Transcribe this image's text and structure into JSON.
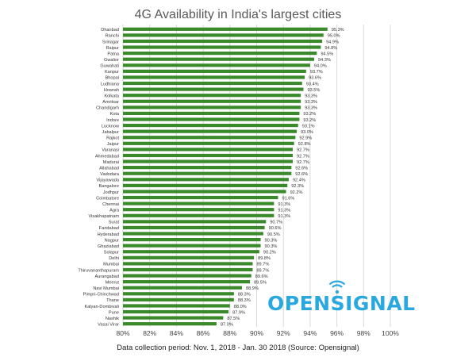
{
  "title": "4G Availability in India's largest cities",
  "footer": "Data collection period: Nov. 1, 2018 - Jan. 30 2018 (Source: Opensignal)",
  "logo": {
    "text": "OPENSIGNAL",
    "icon": "signal-icon",
    "color": "#29a8e0"
  },
  "colors": {
    "bar": "#3a8a2b",
    "grid": "#d9d9d9",
    "text": "#333333"
  },
  "chart_data": {
    "type": "bar",
    "orientation": "horizontal",
    "title": "4G Availability in India's largest cities",
    "xlim": [
      80,
      100
    ],
    "xticks": [
      80,
      82,
      84,
      86,
      88,
      90,
      92,
      94,
      96,
      98,
      100
    ],
    "xtick_labels": [
      "80%",
      "82%",
      "84%",
      "86%",
      "88%",
      "90%",
      "92%",
      "94%",
      "96%",
      "98%",
      "100%"
    ],
    "grid": true,
    "categories": [
      "Dhanbad",
      "Ranchi",
      "Srinagar",
      "Raipur",
      "Patna",
      "Gwalior",
      "Guwahati",
      "Kanpur",
      "Bhopal",
      "Ludhiana",
      "Howrah",
      "Kolkata",
      "Amritsar",
      "Chandigarh",
      "Kota",
      "Indore",
      "Lucknow",
      "Jabalpur",
      "Rajkot",
      "Jaipur",
      "Varanasi",
      "Ahmedabad",
      "Madurai",
      "Allahabad",
      "Vadodara",
      "Vijayawada",
      "Bangalore",
      "Jodhpur",
      "Coimbatore",
      "Chennai",
      "Agra",
      "Visakhapatnam",
      "Surat",
      "Faridabad",
      "Hyderabad",
      "Nagpur",
      "Ghaziabad",
      "Solapur",
      "Delhi",
      "Mumbai",
      "Thiruvananthapuram",
      "Aurangabad",
      "Meerut",
      "Navi Mumbai",
      "Pimpri-Chinchwad",
      "Thane",
      "Kalyan-Dombivali",
      "Pune",
      "Nashik",
      "Vasai Virar"
    ],
    "values": [
      95.3,
      95.0,
      94.9,
      94.8,
      94.5,
      94.3,
      94.0,
      93.7,
      93.6,
      93.4,
      93.5,
      93.3,
      93.3,
      93.3,
      93.2,
      93.2,
      93.1,
      93.0,
      92.9,
      92.8,
      92.7,
      92.7,
      92.7,
      92.6,
      92.6,
      92.4,
      92.3,
      92.2,
      91.6,
      91.3,
      91.3,
      91.3,
      90.7,
      90.6,
      90.5,
      90.3,
      90.3,
      90.2,
      89.8,
      89.7,
      89.7,
      89.6,
      89.5,
      88.9,
      88.3,
      88.3,
      88.0,
      87.9,
      87.5,
      87.0
    ],
    "value_labels": [
      "95.3%",
      "95.0%",
      "94.9%",
      "94.8%",
      "94.5%",
      "94.3%",
      "94.0%",
      "93.7%",
      "93.6%",
      "93.4%",
      "93.5%",
      "93.3%",
      "93.3%",
      "93.3%",
      "93.2%",
      "93.2%",
      "93.1%",
      "93.0%",
      "92.9%",
      "92.8%",
      "92.7%",
      "92.7%",
      "92.7%",
      "92.6%",
      "92.6%",
      "92.4%",
      "92.3%",
      "92.2%",
      "91.6%",
      "91.3%",
      "91.3%",
      "91.3%",
      "90.7%",
      "90.6%",
      "90.5%",
      "90.3%",
      "90.3%",
      "90.2%",
      "89.8%",
      "89.7%",
      "89.7%",
      "89.6%",
      "89.5%",
      "88.9%",
      "88.3%",
      "88.3%",
      "88.0%",
      "87.9%",
      "87.5%",
      "87.0%"
    ]
  }
}
